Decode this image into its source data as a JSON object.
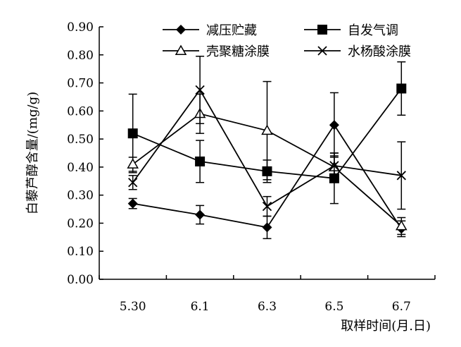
{
  "chart_data": {
    "type": "line",
    "title": "",
    "xlabel": "取样时间(月.日)",
    "ylabel": "白藜芦醇含量/(mg/g)",
    "categories": [
      "5.30",
      "6.1",
      "6.3",
      "6.5",
      "6.7"
    ],
    "ylim": [
      0,
      0.9
    ],
    "yticks": [
      "0.00",
      "0.10",
      "0.20",
      "0.30",
      "0.40",
      "0.50",
      "0.60",
      "0.70",
      "0.80",
      "0.90"
    ],
    "grid": false,
    "legend_position": "top",
    "series": [
      {
        "name": "减压贮藏",
        "marker": "diamond",
        "values": [
          0.27,
          0.23,
          0.185,
          0.55,
          0.18
        ],
        "errors": [
          0.018,
          0.033,
          0.04,
          0.115,
          0.028
        ]
      },
      {
        "name": "自发气调",
        "marker": "square",
        "values": [
          0.52,
          0.42,
          0.385,
          0.36,
          0.68
        ],
        "errors": [
          0.14,
          0.075,
          0.04,
          0.09,
          0.095
        ]
      },
      {
        "name": "壳聚糖涂膜",
        "marker": "triangle",
        "values": [
          0.41,
          0.59,
          0.53,
          0.4,
          0.19
        ],
        "errors": [
          0.025,
          0.07,
          0.175,
          0.04,
          0.03
        ]
      },
      {
        "name": "水杨酸涂膜",
        "marker": "x",
        "values": [
          0.345,
          0.675,
          0.26,
          0.405,
          0.37
        ],
        "errors": [
          0.025,
          0.12,
          0.035,
          0.045,
          0.12
        ]
      }
    ]
  }
}
